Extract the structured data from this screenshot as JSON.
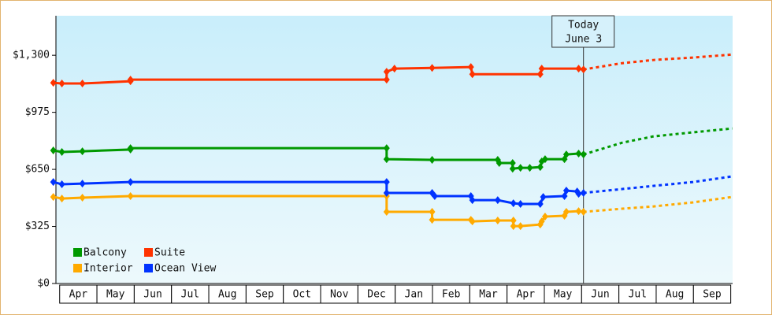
{
  "chart_data": {
    "type": "line",
    "months": [
      "Apr",
      "May",
      "Jun",
      "Jul",
      "Aug",
      "Sep",
      "Oct",
      "Nov",
      "Dec",
      "Jan",
      "Feb",
      "Mar",
      "Apr",
      "May",
      "Jun",
      "Jul",
      "Aug",
      "Sep"
    ],
    "xlim": [
      -0.1,
      18.05
    ],
    "ylim": [
      0,
      1525
    ],
    "yticks": [
      {
        "value": 0,
        "label": "$0"
      },
      {
        "value": 325,
        "label": "$325"
      },
      {
        "value": 650,
        "label": "$650"
      },
      {
        "value": 975,
        "label": "$975"
      },
      {
        "value": 1300,
        "label": "$1,300"
      }
    ],
    "today": {
      "x": 14.05,
      "label": [
        "Today",
        "June 3"
      ]
    },
    "legend": "lower left",
    "series": [
      {
        "name": "Balcony",
        "color": "#009900",
        "x": [
          -0.17,
          0.06,
          0.61,
          1.9,
          1.9,
          8.77,
          8.77,
          9.99,
          11.75,
          11.79,
          12.15,
          12.15,
          12.36,
          12.61,
          12.89,
          12.93,
          13.02,
          13.54,
          13.59,
          13.92,
          14.05
        ],
        "values": [
          758,
          749,
          753,
          763,
          771,
          771,
          708,
          704,
          704,
          686,
          686,
          654,
          659,
          659,
          663,
          695,
          708,
          708,
          735,
          740,
          735
        ],
        "forecast_x": [
          14.05,
          15.09,
          15.93,
          16.99,
          18.04
        ],
        "forecast_values": [
          735,
          802,
          838,
          861,
          883
        ]
      },
      {
        "name": "Suite",
        "color": "#ff3300",
        "x": [
          -0.17,
          0.06,
          0.61,
          1.9,
          1.9,
          8.77,
          8.77,
          8.98,
          9.99,
          11.03,
          11.07,
          12.89,
          12.93,
          13.92,
          14.05
        ],
        "values": [
          1143,
          1139,
          1139,
          1152,
          1161,
          1161,
          1206,
          1224,
          1228,
          1233,
          1192,
          1192,
          1224,
          1224,
          1219
        ],
        "forecast_x": [
          14.05,
          15.09,
          15.93,
          16.99,
          18.04
        ],
        "forecast_values": [
          1219,
          1255,
          1273,
          1287,
          1304
        ]
      },
      {
        "name": "Interior",
        "color": "#ffaa00",
        "x": [
          -0.17,
          0.06,
          0.61,
          1.9,
          8.77,
          8.77,
          9.99,
          9.99,
          11.03,
          11.07,
          11.75,
          12.17,
          12.17,
          12.36,
          12.89,
          12.93,
          13.02,
          13.54,
          13.59,
          13.92,
          14.05
        ],
        "values": [
          493,
          484,
          489,
          498,
          498,
          408,
          408,
          363,
          363,
          354,
          359,
          359,
          327,
          327,
          336,
          354,
          381,
          386,
          408,
          412,
          408
        ],
        "forecast_x": [
          14.05,
          15.09,
          15.93,
          16.99,
          18.04
        ],
        "forecast_values": [
          408,
          426,
          439,
          462,
          493
        ]
      },
      {
        "name": "Ocean View",
        "color": "#0033ff",
        "x": [
          -0.17,
          0.06,
          0.61,
          1.9,
          8.77,
          8.77,
          9.99,
          10.06,
          11.03,
          11.07,
          11.75,
          12.17,
          12.36,
          12.89,
          12.97,
          13.54,
          13.59,
          13.88,
          13.92,
          14.05
        ],
        "values": [
          578,
          565,
          569,
          578,
          578,
          516,
          516,
          498,
          498,
          475,
          475,
          457,
          453,
          453,
          493,
          498,
          529,
          524,
          511,
          516
        ],
        "forecast_x": [
          14.05,
          15.09,
          15.93,
          16.99,
          18.04
        ],
        "forecast_values": [
          516,
          538,
          556,
          578,
          610
        ]
      }
    ]
  }
}
